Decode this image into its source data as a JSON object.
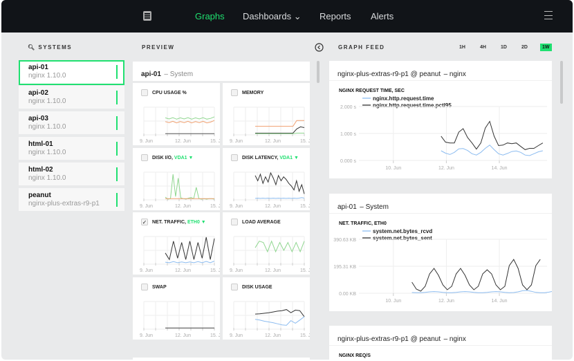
{
  "nav": {
    "logo_icon": "server-icon",
    "items": [
      {
        "label": "Graphs",
        "active": true
      },
      {
        "label": "Dashboards ⌄"
      },
      {
        "label": "Reports"
      },
      {
        "label": "Alerts"
      }
    ],
    "menu_icon": "hamburger-icon"
  },
  "colors": {
    "accent": "#1fe070",
    "blue": "#8cbcf0",
    "dark": "#333333",
    "orange": "#f0a070",
    "green": "#8fd68f"
  },
  "sidebar": {
    "title": "SYSTEMS",
    "systems": [
      {
        "name": "api-01",
        "version": "nginx 1.10.0",
        "selected": true
      },
      {
        "name": "api-02",
        "version": "nginx 1.10.0"
      },
      {
        "name": "api-03",
        "version": "nginx 1.10.0"
      },
      {
        "name": "html-01",
        "version": "nginx 1.10.0"
      },
      {
        "name": "html-02",
        "version": "nginx 1.10.0"
      },
      {
        "name": "peanut",
        "version": "nginx-plus-extras-r9-p1"
      }
    ]
  },
  "preview": {
    "title": "PREVIEW",
    "header_name": "api-01",
    "header_sub": "– System",
    "x_ticks": [
      "9. Jun",
      "12. Jun",
      "15. Jun"
    ],
    "charts": [
      {
        "title": "CPU USAGE %",
        "checked": false,
        "series": [
          {
            "color": "#8fd68f",
            "values": [
              62,
              58,
              63,
              57,
              62,
              58,
              63,
              57,
              62,
              58,
              63,
              57,
              60,
              66
            ]
          },
          {
            "color": "#f0a070",
            "values": [
              48,
              44,
              49,
              43,
              48,
              44,
              49,
              43,
              48,
              44,
              49,
              43,
              46,
              52
            ]
          },
          {
            "color": "#555",
            "values": [
              2,
              2,
              2,
              2,
              2,
              2,
              2,
              2,
              2,
              2,
              2,
              2,
              2,
              2
            ]
          }
        ]
      },
      {
        "title": "MEMORY",
        "checked": false,
        "series": [
          {
            "color": "#f0a070",
            "values": [
              30,
              30,
              30,
              30,
              30,
              30,
              30,
              30,
              30,
              30,
              30,
              52,
              52,
              52
            ]
          },
          {
            "color": "#333",
            "values": [
              4,
              4,
              4,
              4,
              4,
              4,
              4,
              4,
              4,
              4,
              4,
              20,
              28,
              25
            ]
          },
          {
            "color": "#8fd68f",
            "values": [
              2,
              2,
              2,
              2,
              2,
              2,
              2,
              2,
              2,
              2,
              2,
              4,
              4,
              4
            ]
          }
        ]
      },
      {
        "title": "DISK I/O, ",
        "tag": "VDA1 ▼",
        "checked": false,
        "series": [
          {
            "color": "#8fd68f",
            "values": [
              8,
              0,
              2,
              95,
              10,
              80,
              5,
              2,
              0,
              4,
              6,
              2,
              45,
              2,
              0,
              2,
              0,
              2,
              2,
              0
            ]
          },
          {
            "color": "#f0a070",
            "values": [
              2,
              2,
              2,
              2,
              2,
              2,
              2,
              2,
              2,
              2,
              2,
              2,
              2,
              2,
              2,
              2,
              2,
              2,
              2,
              2
            ]
          }
        ]
      },
      {
        "title": "DISK LATENCY, ",
        "tag": "VDA1 ▼",
        "checked": false,
        "series": [
          {
            "color": "#333",
            "values": [
              90,
              70,
              95,
              60,
              85,
              65,
              100,
              80,
              55,
              90,
              70,
              85,
              75,
              60,
              50,
              35,
              70,
              30,
              55,
              20
            ]
          },
          {
            "color": "#8cbcf0",
            "values": [
              3,
              4,
              3,
              4,
              3,
              4,
              3,
              4,
              3,
              4,
              3,
              4,
              3,
              4,
              3,
              4,
              3,
              4,
              6,
              4
            ]
          }
        ]
      },
      {
        "title": "NET. TRAFFIC, ",
        "tag": "ETH0 ▼",
        "checked": true,
        "series": [
          {
            "color": "#333",
            "values": [
              40,
              15,
              85,
              20,
              80,
              15,
              85,
              15,
              80,
              20,
              100,
              15,
              95
            ]
          },
          {
            "color": "#8cbcf0",
            "values": [
              5,
              3,
              7,
              3,
              6,
              3,
              6,
              3,
              7,
              3,
              8,
              3,
              9
            ]
          }
        ]
      },
      {
        "title": "LOAD AVERAGE",
        "checked": false,
        "series": [
          {
            "color": "#8fd68f",
            "values": [
              60,
              85,
              80,
              45,
              85,
              45,
              80,
              50,
              80,
              45,
              80,
              45,
              85
            ]
          }
        ]
      },
      {
        "title": "SWAP",
        "checked": false,
        "series": [
          {
            "color": "#444",
            "values": [
              2,
              2,
              2,
              2,
              2,
              2,
              2,
              2,
              2,
              2,
              2,
              2,
              2,
              2
            ]
          }
        ]
      },
      {
        "title": "DISK USAGE",
        "checked": false,
        "series": [
          {
            "color": "#333",
            "values": [
              55,
              56,
              58,
              60,
              63,
              66,
              68,
              72,
              60,
              70,
              68,
              45
            ]
          },
          {
            "color": "#8cbcf0",
            "values": [
              35,
              32,
              28,
              25,
              22,
              18,
              14,
              12,
              30,
              20,
              32,
              45
            ]
          }
        ]
      }
    ]
  },
  "feed": {
    "title": "GRAPH FEED",
    "collapse_icon": "chevron-left-circle-icon",
    "ranges": [
      "1H",
      "4H",
      "1D",
      "2D",
      "1W"
    ],
    "active_range": "1W",
    "cards": [
      {
        "name": "nginx-plus-extras-r9-p1 @ peanut",
        "sub": "– nginx",
        "chart": {
          "title": "NGINX REQUEST TIME, SEC",
          "y_ticks": [
            "2.000 s",
            "1.000 s",
            "0.000 s"
          ],
          "ylim": [
            0,
            2
          ],
          "x_ticks": [
            "10. Jun",
            "12. Jun",
            "14. Jun"
          ],
          "xlim": [
            8.7,
            15.8
          ],
          "x_start": 11.8,
          "x_step": 0.167,
          "series": [
            {
              "name": "nginx.http.request.time",
              "color": "#8cbcf0",
              "values": [
                0.36,
                0.27,
                0.22,
                0.3,
                0.43,
                0.44,
                0.37,
                0.25,
                0.2,
                0.3,
                0.45,
                0.57,
                0.4,
                0.25,
                0.2,
                0.26,
                0.33,
                0.35,
                0.3,
                0.2,
                0.18,
                0.25,
                0.32,
                0.36
              ]
            },
            {
              "name": "nginx.http.request.time.pctl95",
              "color": "#333333",
              "values": [
                0.9,
                0.68,
                0.65,
                0.65,
                1.05,
                1.18,
                0.85,
                0.65,
                0.42,
                0.65,
                1.2,
                1.45,
                0.9,
                0.55,
                0.57,
                0.65,
                0.62,
                0.65,
                0.52,
                0.4,
                0.45,
                0.45,
                0.55,
                0.65
              ]
            }
          ]
        }
      },
      {
        "name": "api-01",
        "sub": "– System",
        "chart": {
          "title": "NET. TRAFFIC, ETH0",
          "y_ticks": [
            "390.63 KB",
            "195.31 KB",
            "0.00 KB"
          ],
          "ylim": [
            0,
            390.63
          ],
          "x_ticks": [
            "10. Jun",
            "12. Jun",
            "14. Jun"
          ],
          "xlim": [
            8.7,
            15.8
          ],
          "x_start": 10.7,
          "x_step": 0.167,
          "series": [
            {
              "name": "system.net.bytes_rcvd",
              "color": "#8cbcf0",
              "values": [
                5,
                4,
                4,
                6,
                10,
                12,
                10,
                6,
                4,
                4,
                6,
                10,
                12,
                10,
                6,
                4,
                4,
                6,
                10,
                12,
                10,
                6,
                4,
                5,
                10,
                18,
                20,
                14,
                6,
                4,
                4,
                8,
                15,
                20
              ]
            },
            {
              "name": "system.net.bytes_sent",
              "color": "#333333",
              "values": [
                80,
                30,
                15,
                50,
                140,
                180,
                130,
                60,
                25,
                50,
                140,
                180,
                130,
                60,
                25,
                50,
                140,
                170,
                140,
                60,
                25,
                50,
                200,
                245,
                180,
                60,
                25,
                60,
                200,
                245
              ]
            }
          ]
        }
      },
      {
        "name": "nginx-plus-extras-r9-p1 @ peanut",
        "sub": "– nginx",
        "chart": {
          "title": "NGINX REQ/S"
        }
      }
    ]
  }
}
